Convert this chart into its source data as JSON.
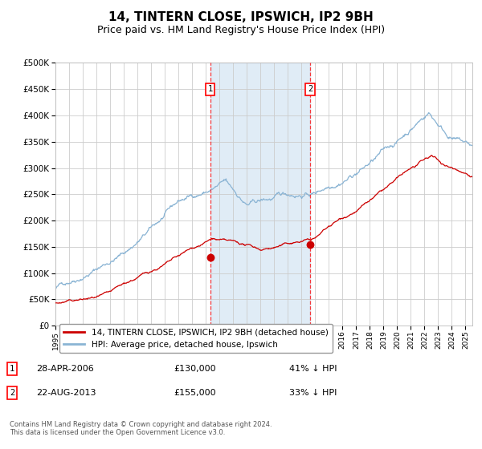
{
  "title": "14, TINTERN CLOSE, IPSWICH, IP2 9BH",
  "subtitle": "Price paid vs. HM Land Registry's House Price Index (HPI)",
  "title_fontsize": 11,
  "subtitle_fontsize": 9,
  "background_color": "#ffffff",
  "plot_bg_color": "#ffffff",
  "grid_color": "#cccccc",
  "hpi_color": "#8ab4d4",
  "price_color": "#cc0000",
  "sale1_date_num": 2006.32,
  "sale2_date_num": 2013.64,
  "sale1_price": 130000,
  "sale2_price": 155000,
  "ylim": [
    0,
    500000
  ],
  "xlim_start": 1995.0,
  "xlim_end": 2025.5,
  "legend_label_price": "14, TINTERN CLOSE, IPSWICH, IP2 9BH (detached house)",
  "legend_label_hpi": "HPI: Average price, detached house, Ipswich",
  "footer_text": "Contains HM Land Registry data © Crown copyright and database right 2024.\nThis data is licensed under the Open Government Licence v3.0.",
  "sale1_label": "28-APR-2006",
  "sale1_amount": "£130,000",
  "sale1_pct": "41% ↓ HPI",
  "sale2_label": "22-AUG-2013",
  "sale2_amount": "£155,000",
  "sale2_pct": "33% ↓ HPI"
}
